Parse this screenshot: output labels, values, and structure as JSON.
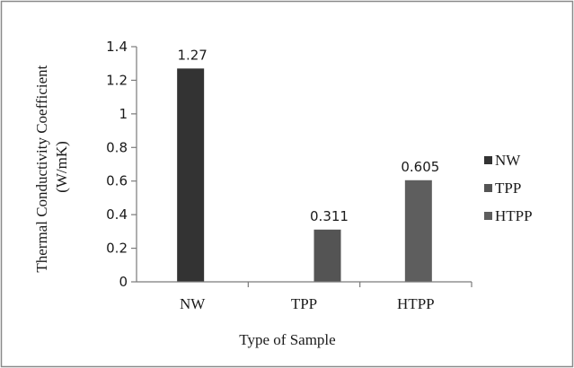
{
  "chart_data": {
    "type": "bar",
    "categories": [
      "NW",
      "TPP",
      "HTPP"
    ],
    "series": [
      {
        "name": "NW",
        "values": [
          1.27,
          null,
          null
        ],
        "color": "#333333"
      },
      {
        "name": "TPP",
        "values": [
          null,
          0.311,
          null
        ],
        "color": "#545454"
      },
      {
        "name": "HTPP",
        "values": [
          null,
          null,
          0.605
        ],
        "color": "#5e5e5e"
      }
    ],
    "data_labels": [
      "1.27",
      "0.311",
      "0.605"
    ],
    "xlabel": "Type of Sample",
    "ylabel_lines": [
      "Thermal Conductivity Coefficient",
      "(W/mK)"
    ],
    "ylim": [
      0,
      1.4
    ],
    "yticks": [
      0,
      0.2,
      0.4,
      0.6,
      0.8,
      1,
      1.2,
      1.4
    ],
    "ytick_labels": [
      "0",
      "0.2",
      "0.4",
      "0.6",
      "0.8",
      "1",
      "1.2",
      "1.4"
    ],
    "grid": false,
    "legend_position": "right"
  }
}
